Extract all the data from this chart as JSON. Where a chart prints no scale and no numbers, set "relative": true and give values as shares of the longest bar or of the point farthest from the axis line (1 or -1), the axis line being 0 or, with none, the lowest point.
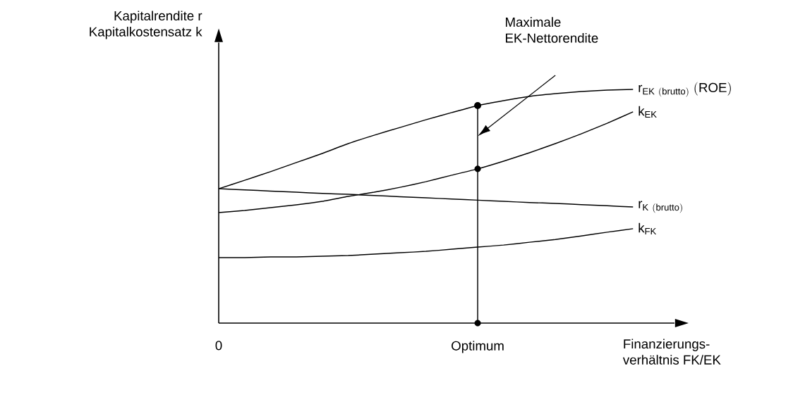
{
  "chart_data": {
    "type": "line",
    "relative": true,
    "ylabel": "Kapitalrendite r Kapitalkostensatz k",
    "xlabel": "Finanzierungs-verhältnis FK/EK",
    "tick_labels": "x",
    "marker": "none",
    "line_style": "solid",
    "categories": [
      "0",
      null,
      null,
      null,
      null,
      null,
      null,
      null,
      null,
      null,
      "Optimum",
      null,
      null,
      null,
      null,
      null,
      null
    ],
    "series": [
      {
        "name": "\\mathrm{r}_{\\mathrm{EK\\ (brutto)}}\\ \\mathrm{(ROE)}",
        "color": "#000000",
        "values": [
          0.575,
          0.611,
          0.648,
          0.687,
          0.726,
          0.768,
          0.804,
          0.837,
          0.87,
          0.901,
          0.931,
          0.952,
          0.97,
          0.982,
          0.991,
          0.997,
          1.0
        ]
      },
      {
        "name": "\\mathrm{k}_{\\mathrm{EK}}",
        "color": "#000000",
        "values": [
          0.473,
          0.482,
          0.494,
          0.506,
          0.521,
          0.542,
          0.56,
          0.581,
          0.605,
          0.633,
          0.66,
          0.693,
          0.729,
          0.768,
          0.81,
          0.855,
          0.904
        ]
      },
      {
        "name": "\\mathrm{r}_{\\mathrm{K\\ (brutto)}}",
        "color": "#000000",
        "values": [
          0.575,
          0.57,
          0.565,
          0.56,
          0.555,
          0.551,
          0.546,
          0.541,
          0.536,
          0.531,
          0.526,
          0.521,
          0.516,
          0.512,
          0.507,
          0.502,
          0.497
        ]
      },
      {
        "name": "\\mathrm{k}_{\\mathrm{FK}}",
        "color": "#000000",
        "values": [
          0.28,
          0.28,
          0.283,
          0.283,
          0.286,
          0.289,
          0.295,
          0.301,
          0.307,
          0.316,
          0.325,
          0.334,
          0.346,
          0.358,
          0.373,
          0.389,
          0.404
        ]
      },
      {
        "type": "scatter",
        "marker": "circle",
        "color": "#000000",
        "x": [
          "Optimum",
          "Optimum"
        ],
        "values": [
          0,
          0.66
        ]
      },
      {
        "type": "lollipop",
        "marker": "circle",
        "color": "#000000",
        "x": [
          "Optimum"
        ],
        "values": [
          0.931
        ]
      }
    ],
    "annotations": [
      "Maximale EK-Nettorendite"
    ]
  }
}
